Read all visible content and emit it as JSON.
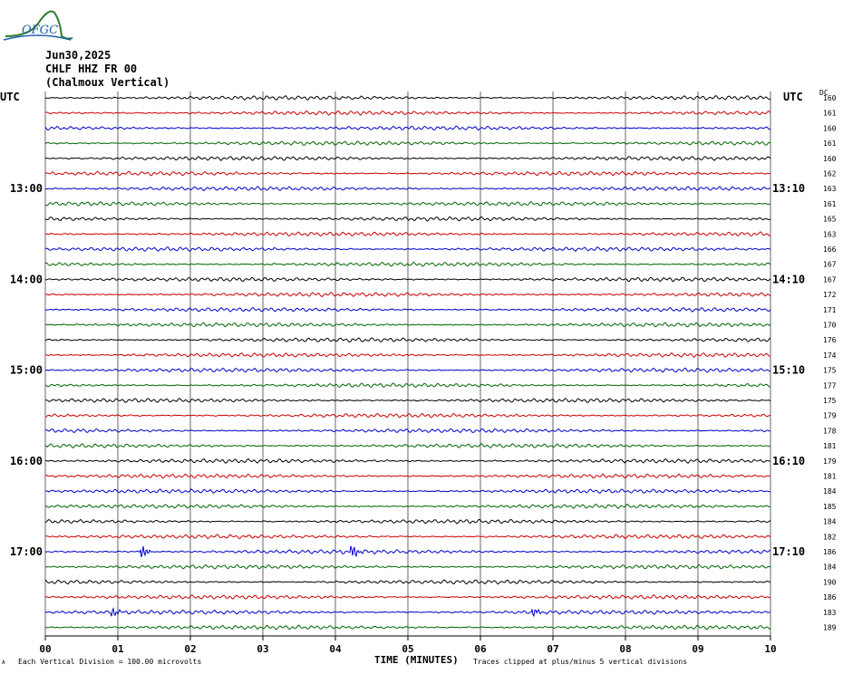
{
  "logo_text": "OFGC",
  "header": {
    "date": "Jun30,2025",
    "station": "CHLF HHZ FR 00",
    "location": "(Chalmoux Vertical)"
  },
  "utc_left": "UTC",
  "utc_right": "UTC",
  "dc_label": "DC",
  "footer": {
    "scale_note": "Each Vertical Division =  100.00 microvolts",
    "clip_note": "Traces clipped at plus/minus 5 vertical divisions",
    "corner_mark": "A"
  },
  "colors": {
    "trace_cycle": [
      "#000000",
      "#cc0000",
      "#0000cc",
      "#006600"
    ],
    "grid": "#000000"
  },
  "chart_data": {
    "type": "line",
    "title": "Jun30,2025 CHLF HHZ FR 00 (Chalmoux Vertical)",
    "xlabel": "TIME (MINUTES)",
    "ylabel": "UTC",
    "x_ticks": [
      "00",
      "01",
      "02",
      "03",
      "04",
      "05",
      "06",
      "07",
      "08",
      "09",
      "10"
    ],
    "xlim": [
      0,
      10
    ],
    "grid": true,
    "trace_count": 36,
    "left_hour_labels": [
      {
        "trace": 6,
        "label": "13:00"
      },
      {
        "trace": 12,
        "label": "14:00"
      },
      {
        "trace": 18,
        "label": "15:00"
      },
      {
        "trace": 24,
        "label": "16:00"
      },
      {
        "trace": 30,
        "label": "17:00"
      }
    ],
    "right_hour_labels": [
      {
        "trace": 6,
        "label": "13:10"
      },
      {
        "trace": 12,
        "label": "14:10"
      },
      {
        "trace": 18,
        "label": "15:10"
      },
      {
        "trace": 24,
        "label": "16:10"
      },
      {
        "trace": 30,
        "label": "17:10"
      }
    ],
    "dc_offsets": [
      160,
      161,
      160,
      161,
      160,
      162,
      163,
      161,
      165,
      163,
      166,
      167,
      167,
      172,
      171,
      170,
      176,
      174,
      175,
      177,
      175,
      179,
      178,
      181,
      179,
      181,
      184,
      185,
      184,
      182,
      186,
      184,
      190,
      186,
      183,
      189
    ],
    "events": [
      {
        "trace": 30,
        "minute": 1.35,
        "amplitude": "moderate"
      },
      {
        "trace": 30,
        "minute": 4.25,
        "amplitude": "moderate"
      },
      {
        "trace": 34,
        "minute": 0.95,
        "amplitude": "small"
      },
      {
        "trace": 34,
        "minute": 6.75,
        "amplitude": "small"
      }
    ],
    "scale_microvolts_per_division": 100.0
  }
}
